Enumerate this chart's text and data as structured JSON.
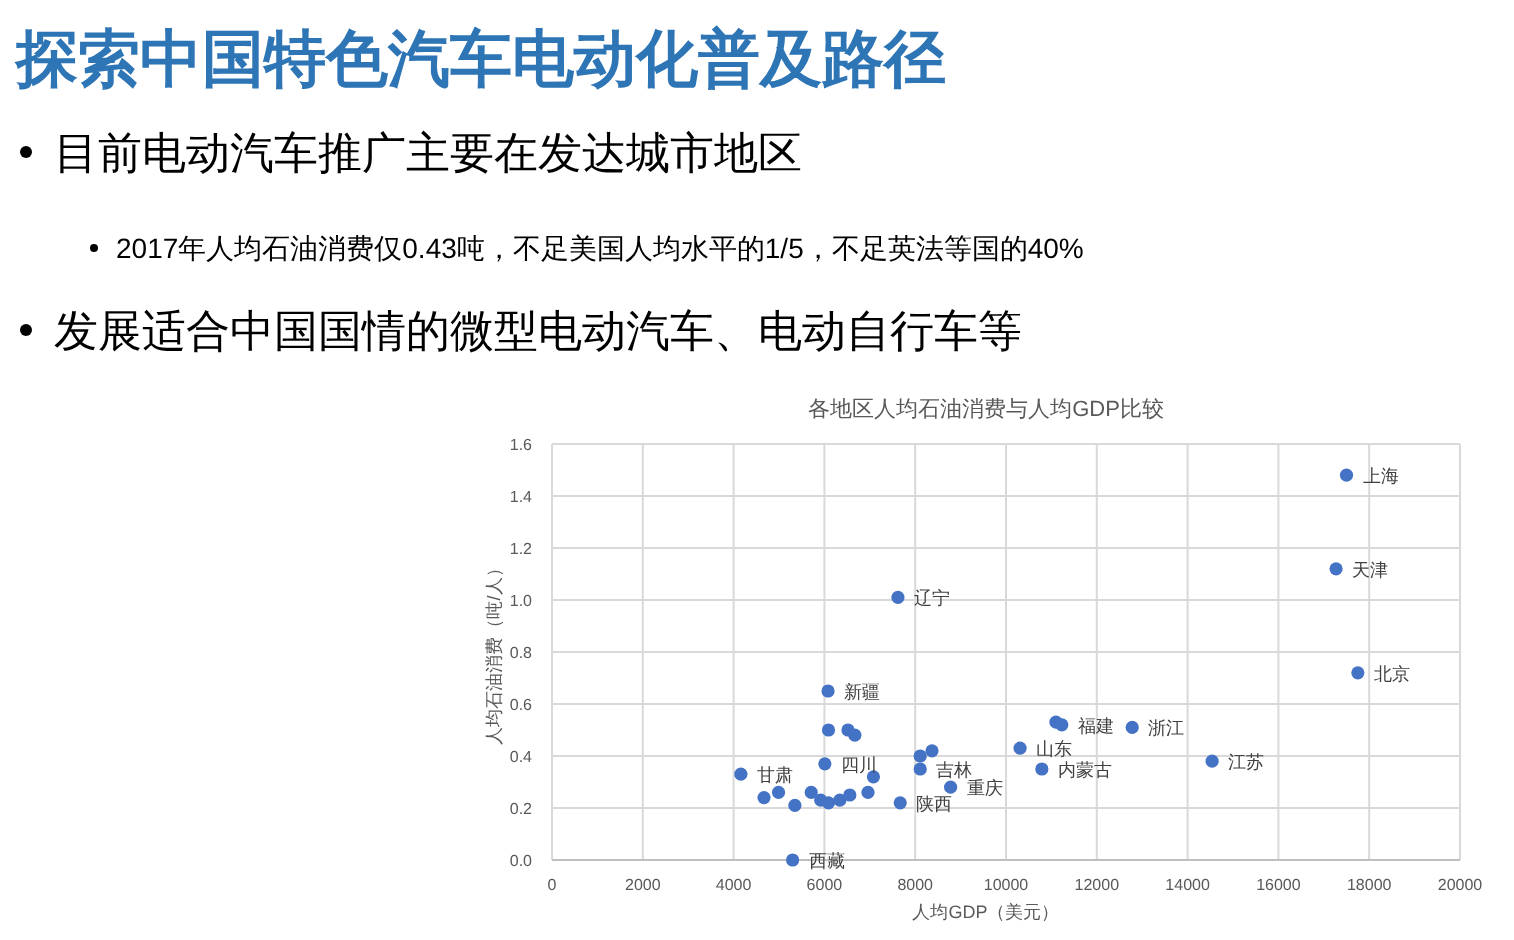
{
  "chart_data": {
    "type": "scatter",
    "title": "探索中国特色汽车电动化普及路径",
    "subtitle": "各地区人均石油消费与人均GDP比较",
    "xlabel": "人均GDP（美元）",
    "ylabel": "人均石油消费（吨/人）",
    "x": [
      17500,
      17270,
      17750,
      7620,
      6080,
      12780,
      14540,
      11100,
      11230,
      10310,
      10790,
      8780,
      7670,
      8110,
      8370,
      8110,
      6090,
      6520,
      6670,
      6010,
      4160,
      7080,
      5300,
      4670,
      4990,
      5350,
      5710,
      5920,
      6090,
      6340,
      6560,
      6960
    ],
    "values": [
      1.48,
      1.12,
      0.72,
      1.01,
      0.65,
      0.51,
      0.38,
      0.53,
      0.52,
      0.43,
      0.35,
      0.28,
      0.22,
      0.4,
      0.42,
      0.35,
      0.5,
      0.5,
      0.48,
      0.37,
      0.33,
      0.32,
      0.0,
      0.24,
      0.26,
      0.21,
      0.26,
      0.23,
      0.22,
      0.23,
      0.25,
      0.26
    ],
    "color": "#4472c4",
    "marker": "circle",
    "xlim": [
      0,
      20000
    ],
    "xticks": [
      0,
      2000,
      4000,
      6000,
      8000,
      10000,
      12000,
      14000,
      16000,
      18000,
      20000
    ],
    "ylim": [
      0,
      1.6
    ],
    "yticks": [
      {
        "value": 0,
        "label": "0.0"
      },
      0.2,
      0.4,
      0.6,
      0.8,
      {
        "value": 1,
        "label": "1.0"
      },
      1.2,
      1.4,
      1.6
    ],
    "grid": true,
    "annotations": [
      "目前电动汽车推广主要在发达城市地区",
      "2017年人均石油消费仅0.43吨，不足美国人均水平的1/5，不足英法等国的40%",
      "发展适合中国国情的微型电动汽车、电动自行车等",
      {
        "text": "上海",
        "x": 17500,
        "y": 1.48
      },
      {
        "text": "天津",
        "x": 17270,
        "y": 1.12
      },
      {
        "text": "北京",
        "x": 17750,
        "y": 0.72
      },
      {
        "text": "辽宁",
        "x": 7620,
        "y": 1.01
      },
      {
        "text": "新疆",
        "x": 6080,
        "y": 0.65
      },
      {
        "text": "浙江",
        "x": 12780,
        "y": 0.51
      },
      {
        "text": "福建",
        "x": 11230,
        "y": 0.52
      },
      {
        "text": "江苏",
        "x": 14540,
        "y": 0.38
      },
      {
        "text": "山东",
        "x": 10310,
        "y": 0.43
      },
      {
        "text": "内蒙古",
        "x": 10790,
        "y": 0.35
      },
      {
        "text": "重庆",
        "x": 8780,
        "y": 0.28
      },
      {
        "text": "陕西",
        "x": 7670,
        "y": 0.22
      },
      {
        "text": "吉林",
        "x": 8110,
        "y": 0.35
      },
      {
        "text": "四川",
        "x": 6010,
        "y": 0.37
      },
      {
        "text": "甘肃",
        "x": 4160,
        "y": 0.33
      },
      {
        "text": "西藏",
        "x": 5300,
        "y": 0.0
      }
    ]
  }
}
